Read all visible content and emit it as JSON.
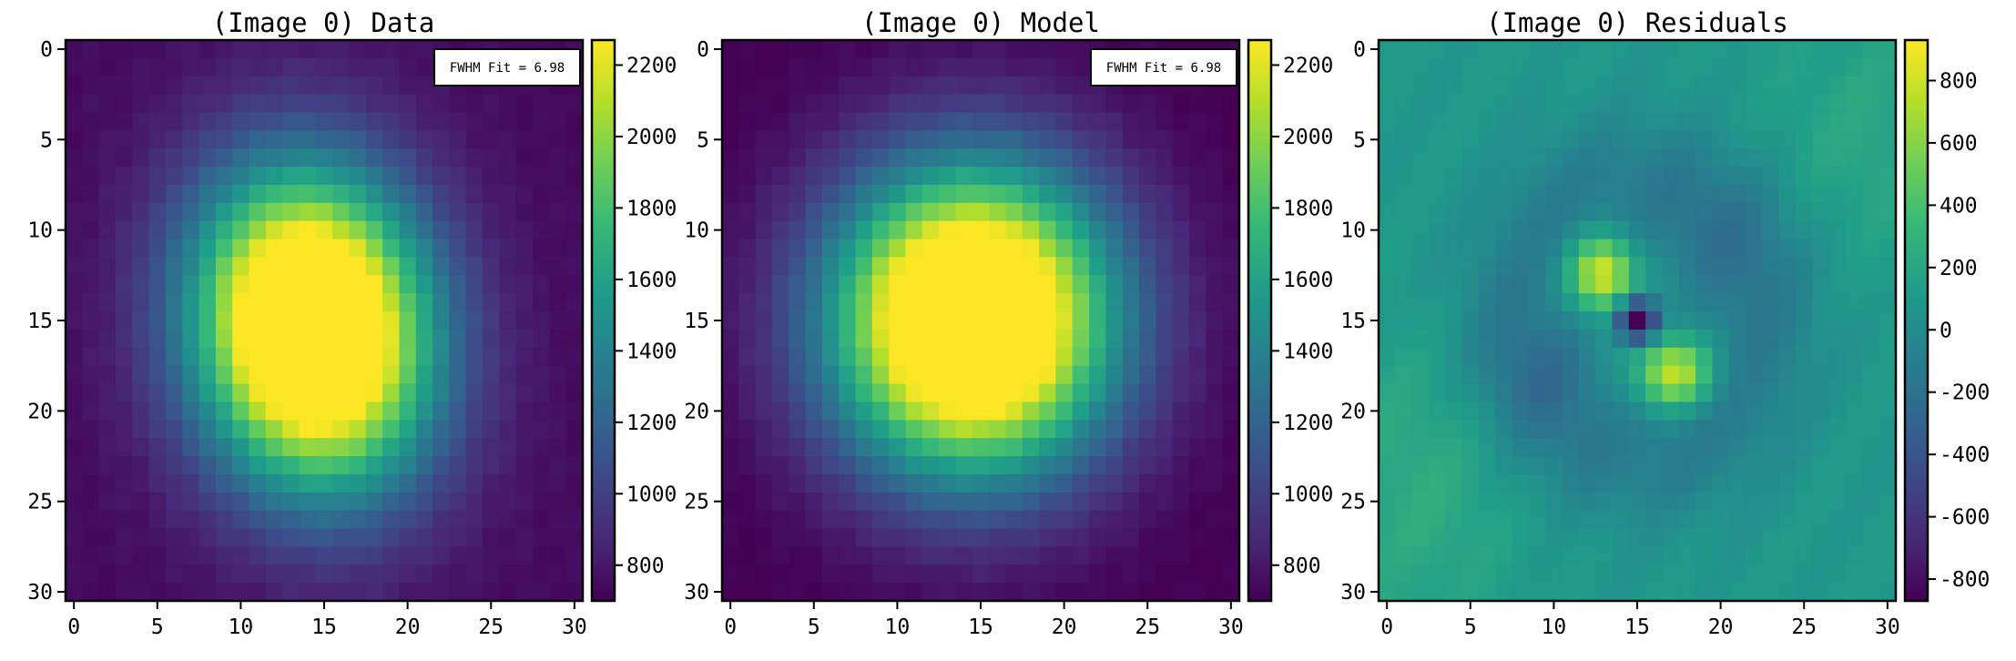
{
  "chart_data": [
    {
      "type": "heatmap",
      "title": "(Image 0) Data",
      "model": "gaussian",
      "amplitude": 1700,
      "background": 740,
      "center": [
        14.3,
        15.5
      ],
      "sigma": [
        4.9,
        6.1
      ],
      "theta_deg": -12,
      "x_range": [
        0,
        30
      ],
      "y_range": [
        0,
        30
      ],
      "xticks": [
        "0",
        "5",
        "10",
        "15",
        "20",
        "25",
        "30"
      ],
      "yticks": [
        "0",
        "5",
        "10",
        "15",
        "20",
        "25",
        "30"
      ],
      "colorbar": {
        "vmin": 700,
        "vmax": 2270,
        "ticks": [
          "800",
          "1000",
          "1200",
          "1400",
          "1600",
          "1800",
          "2000",
          "2200"
        ],
        "tick_values": [
          800,
          1000,
          1200,
          1400,
          1600,
          1800,
          2000,
          2200
        ]
      },
      "annotation": "FWHM Fit = 6.98"
    },
    {
      "type": "heatmap",
      "title": "(Image 0) Model",
      "model": "gaussian",
      "amplitude": 1720,
      "background": 690,
      "center": [
        14.5,
        15.0
      ],
      "sigma": [
        5.9,
        5.9
      ],
      "theta_deg": 0,
      "x_range": [
        0,
        30
      ],
      "y_range": [
        0,
        30
      ],
      "xticks": [
        "0",
        "5",
        "10",
        "15",
        "20",
        "25",
        "30"
      ],
      "yticks": [
        "0",
        "5",
        "10",
        "15",
        "20",
        "25",
        "30"
      ],
      "colorbar": {
        "vmin": 700,
        "vmax": 2270,
        "ticks": [
          "800",
          "1000",
          "1200",
          "1400",
          "1600",
          "1800",
          "2000",
          "2200"
        ],
        "tick_values": [
          800,
          1000,
          1200,
          1400,
          1600,
          1800,
          2000,
          2200
        ]
      },
      "annotation": "FWHM Fit = 6.98"
    },
    {
      "type": "heatmap",
      "title": "(Image 0) Residuals",
      "model": "residual",
      "components": [
        {
          "cx": 12.9,
          "cy": 12.4,
          "amp": 820,
          "sx": 1.3,
          "sy": 1.4
        },
        {
          "cx": 17.2,
          "cy": 17.9,
          "amp": 760,
          "sx": 1.5,
          "sy": 1.3
        },
        {
          "cx": 15.0,
          "cy": 15.0,
          "amp": -1150,
          "sx": 0.8,
          "sy": 0.8
        },
        {
          "cx": 9.5,
          "cy": 18.0,
          "amp": -180,
          "sx": 2.5,
          "sy": 2.5
        },
        {
          "cx": 20.0,
          "cy": 11.0,
          "amp": -120,
          "sx": 3.0,
          "sy": 3.0
        },
        {
          "cx": 2.0,
          "cy": 24.0,
          "amp": 160,
          "sx": 4.0,
          "sy": 6.0
        },
        {
          "cx": 28.5,
          "cy": 5.0,
          "amp": 120,
          "sx": 4.0,
          "sy": 5.0
        }
      ],
      "ring": {
        "radius": 7.5,
        "width": 2.8,
        "amp": -200
      },
      "base": 90,
      "x_range": [
        0,
        30
      ],
      "y_range": [
        0,
        30
      ],
      "xticks": [
        "0",
        "5",
        "10",
        "15",
        "20",
        "25",
        "30"
      ],
      "yticks": [
        "0",
        "5",
        "10",
        "15",
        "20",
        "25",
        "30"
      ],
      "colorbar": {
        "vmin": -870,
        "vmax": 930,
        "ticks": [
          "-800",
          "-600",
          "-400",
          "-200",
          "0",
          "200",
          "400",
          "600",
          "800"
        ],
        "tick_values": [
          -800,
          -600,
          -400,
          -200,
          0,
          200,
          400,
          600,
          800
        ]
      },
      "annotation": ""
    }
  ],
  "colors": {
    "viridis": [
      "#440154",
      "#482878",
      "#3e4989",
      "#31688e",
      "#26828e",
      "#1f9e89",
      "#35b779",
      "#6ece58",
      "#b5de2b",
      "#fde725"
    ]
  }
}
